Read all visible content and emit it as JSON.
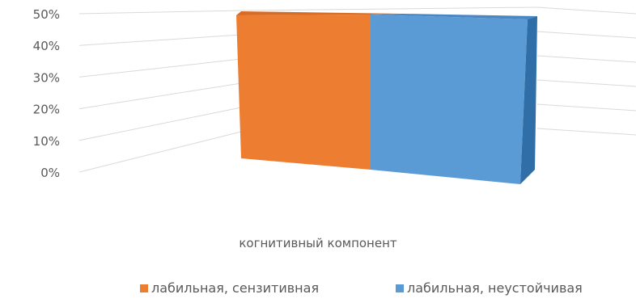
{
  "chart_data": {
    "type": "bar",
    "categories": [
      "когнитивный компонент"
    ],
    "series": [
      {
        "name": "лабильная, сензитивная",
        "values": [
          50
        ],
        "color": "#ED7D31"
      },
      {
        "name": "лабильная, неустойчивая",
        "values": [
          50
        ],
        "color": "#5B9BD5"
      }
    ],
    "ylim": [
      0,
      50
    ],
    "yticks": [
      "0%",
      "10%",
      "20%",
      "30%",
      "40%",
      "50%"
    ],
    "grid": true,
    "legend_position": "bottom",
    "three_d": true
  }
}
